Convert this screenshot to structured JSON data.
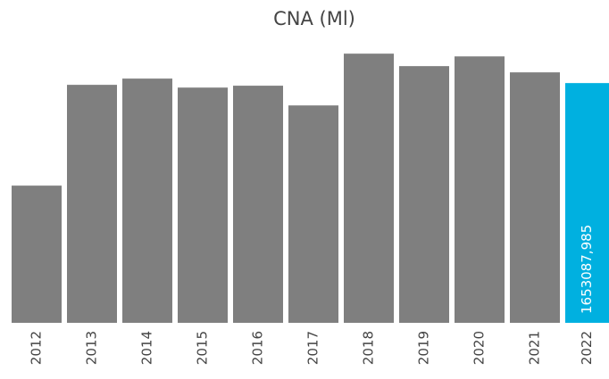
{
  "chart_data": {
    "type": "bar",
    "title": "CNA (Ml)",
    "categories": [
      "2012",
      "2013",
      "2014",
      "2015",
      "2016",
      "2017",
      "2018",
      "2019",
      "2020",
      "2021",
      "2022"
    ],
    "values": [
      946000,
      1641000,
      1684000,
      1622000,
      1635000,
      1499000,
      1856000,
      1770000,
      1837000,
      1727000,
      1653087.985
    ],
    "value_labels": [
      null,
      null,
      null,
      null,
      null,
      null,
      null,
      null,
      null,
      null,
      "1653087,985"
    ],
    "colors": [
      "#7f7f7f",
      "#7f7f7f",
      "#7f7f7f",
      "#7f7f7f",
      "#7f7f7f",
      "#7f7f7f",
      "#7f7f7f",
      "#7f7f7f",
      "#7f7f7f",
      "#7f7f7f",
      "#00b0e0"
    ],
    "ylim": [
      0,
      1900000
    ]
  }
}
